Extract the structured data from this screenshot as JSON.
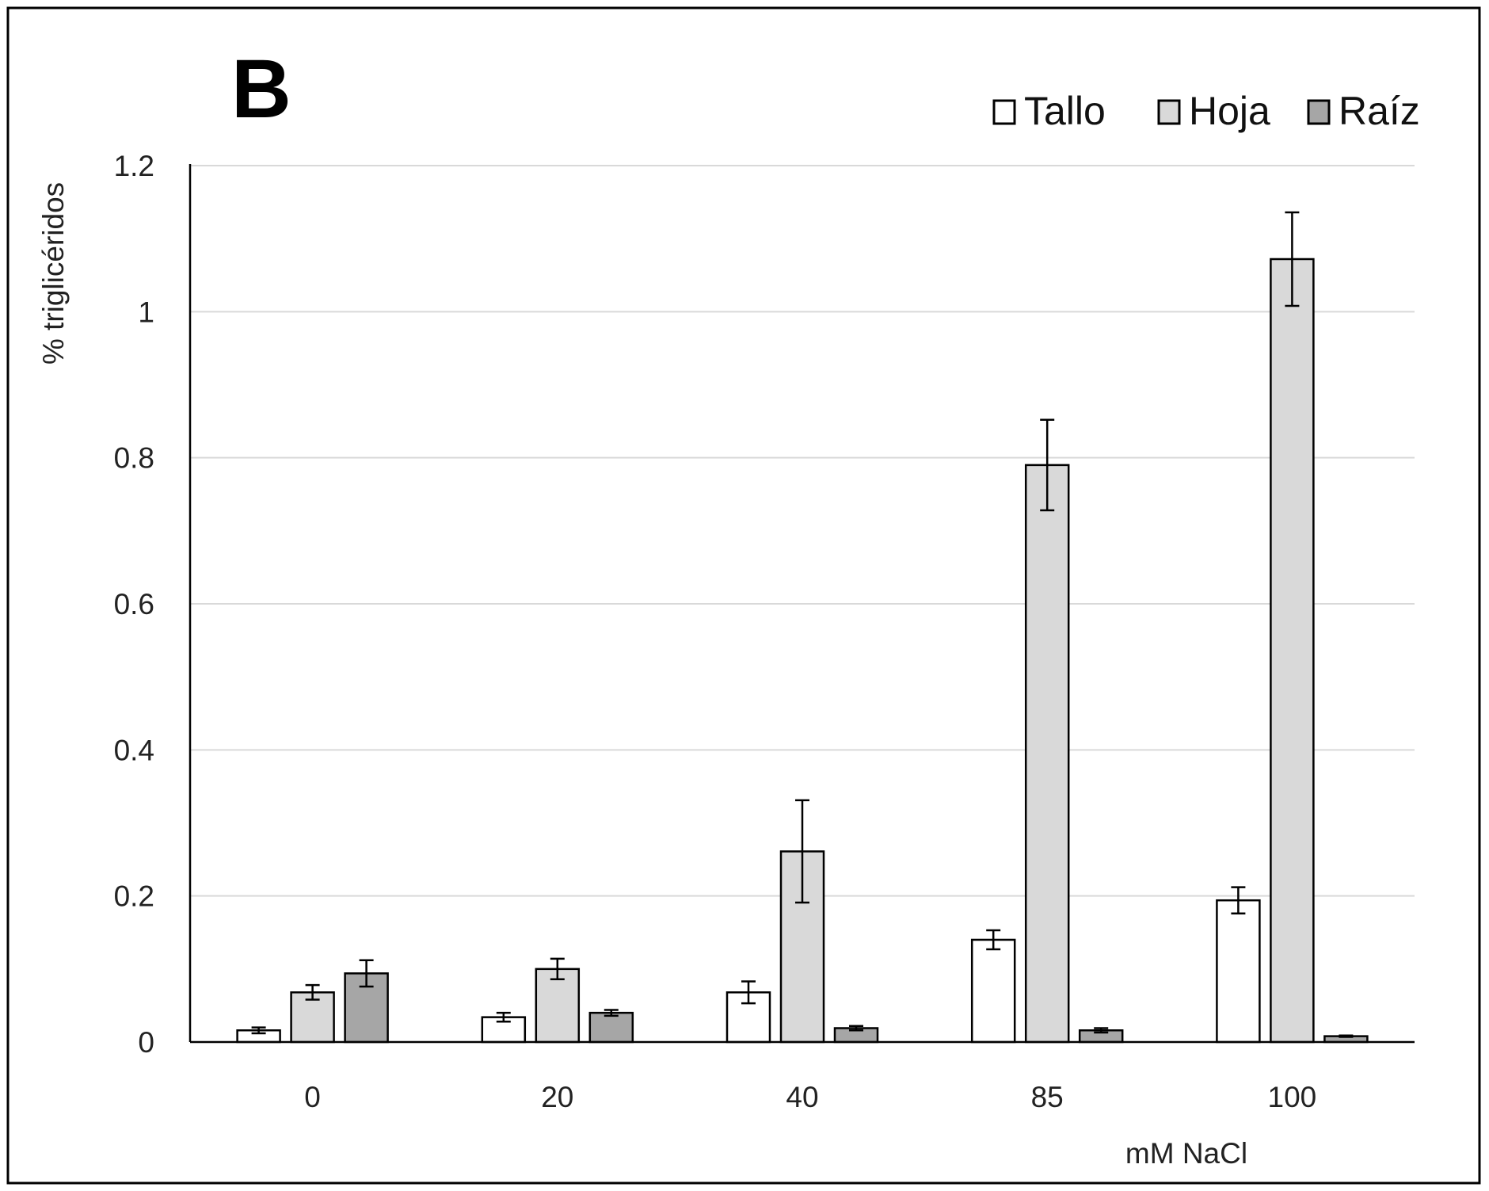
{
  "panel_label": "B",
  "chart_data": {
    "type": "bar",
    "title": "",
    "xlabel": "mM NaCl",
    "ylabel": "% triglicéridos",
    "categories": [
      "0",
      "20",
      "40",
      "85",
      "100"
    ],
    "ylim": [
      0,
      1.2
    ],
    "yticks": [
      "0",
      "0.2",
      "0.4",
      "0.6",
      "0.8",
      "1",
      "1.2"
    ],
    "grid": true,
    "legend_position": "top-right",
    "series": [
      {
        "name": "Tallo",
        "color": "#ffffff",
        "values": [
          0.016,
          0.034,
          0.068,
          0.14,
          0.194
        ],
        "errors": [
          0.004,
          0.006,
          0.015,
          0.013,
          0.018
        ]
      },
      {
        "name": "Hoja",
        "color": "#d9d9d9",
        "values": [
          0.068,
          0.1,
          0.261,
          0.79,
          1.072
        ],
        "errors": [
          0.01,
          0.014,
          0.07,
          0.062,
          0.064
        ]
      },
      {
        "name": "Raíz",
        "color": "#a6a6a6",
        "values": [
          0.094,
          0.04,
          0.019,
          0.016,
          0.008
        ],
        "errors": [
          0.018,
          0.004,
          0.003,
          0.003,
          0.001
        ]
      }
    ]
  }
}
